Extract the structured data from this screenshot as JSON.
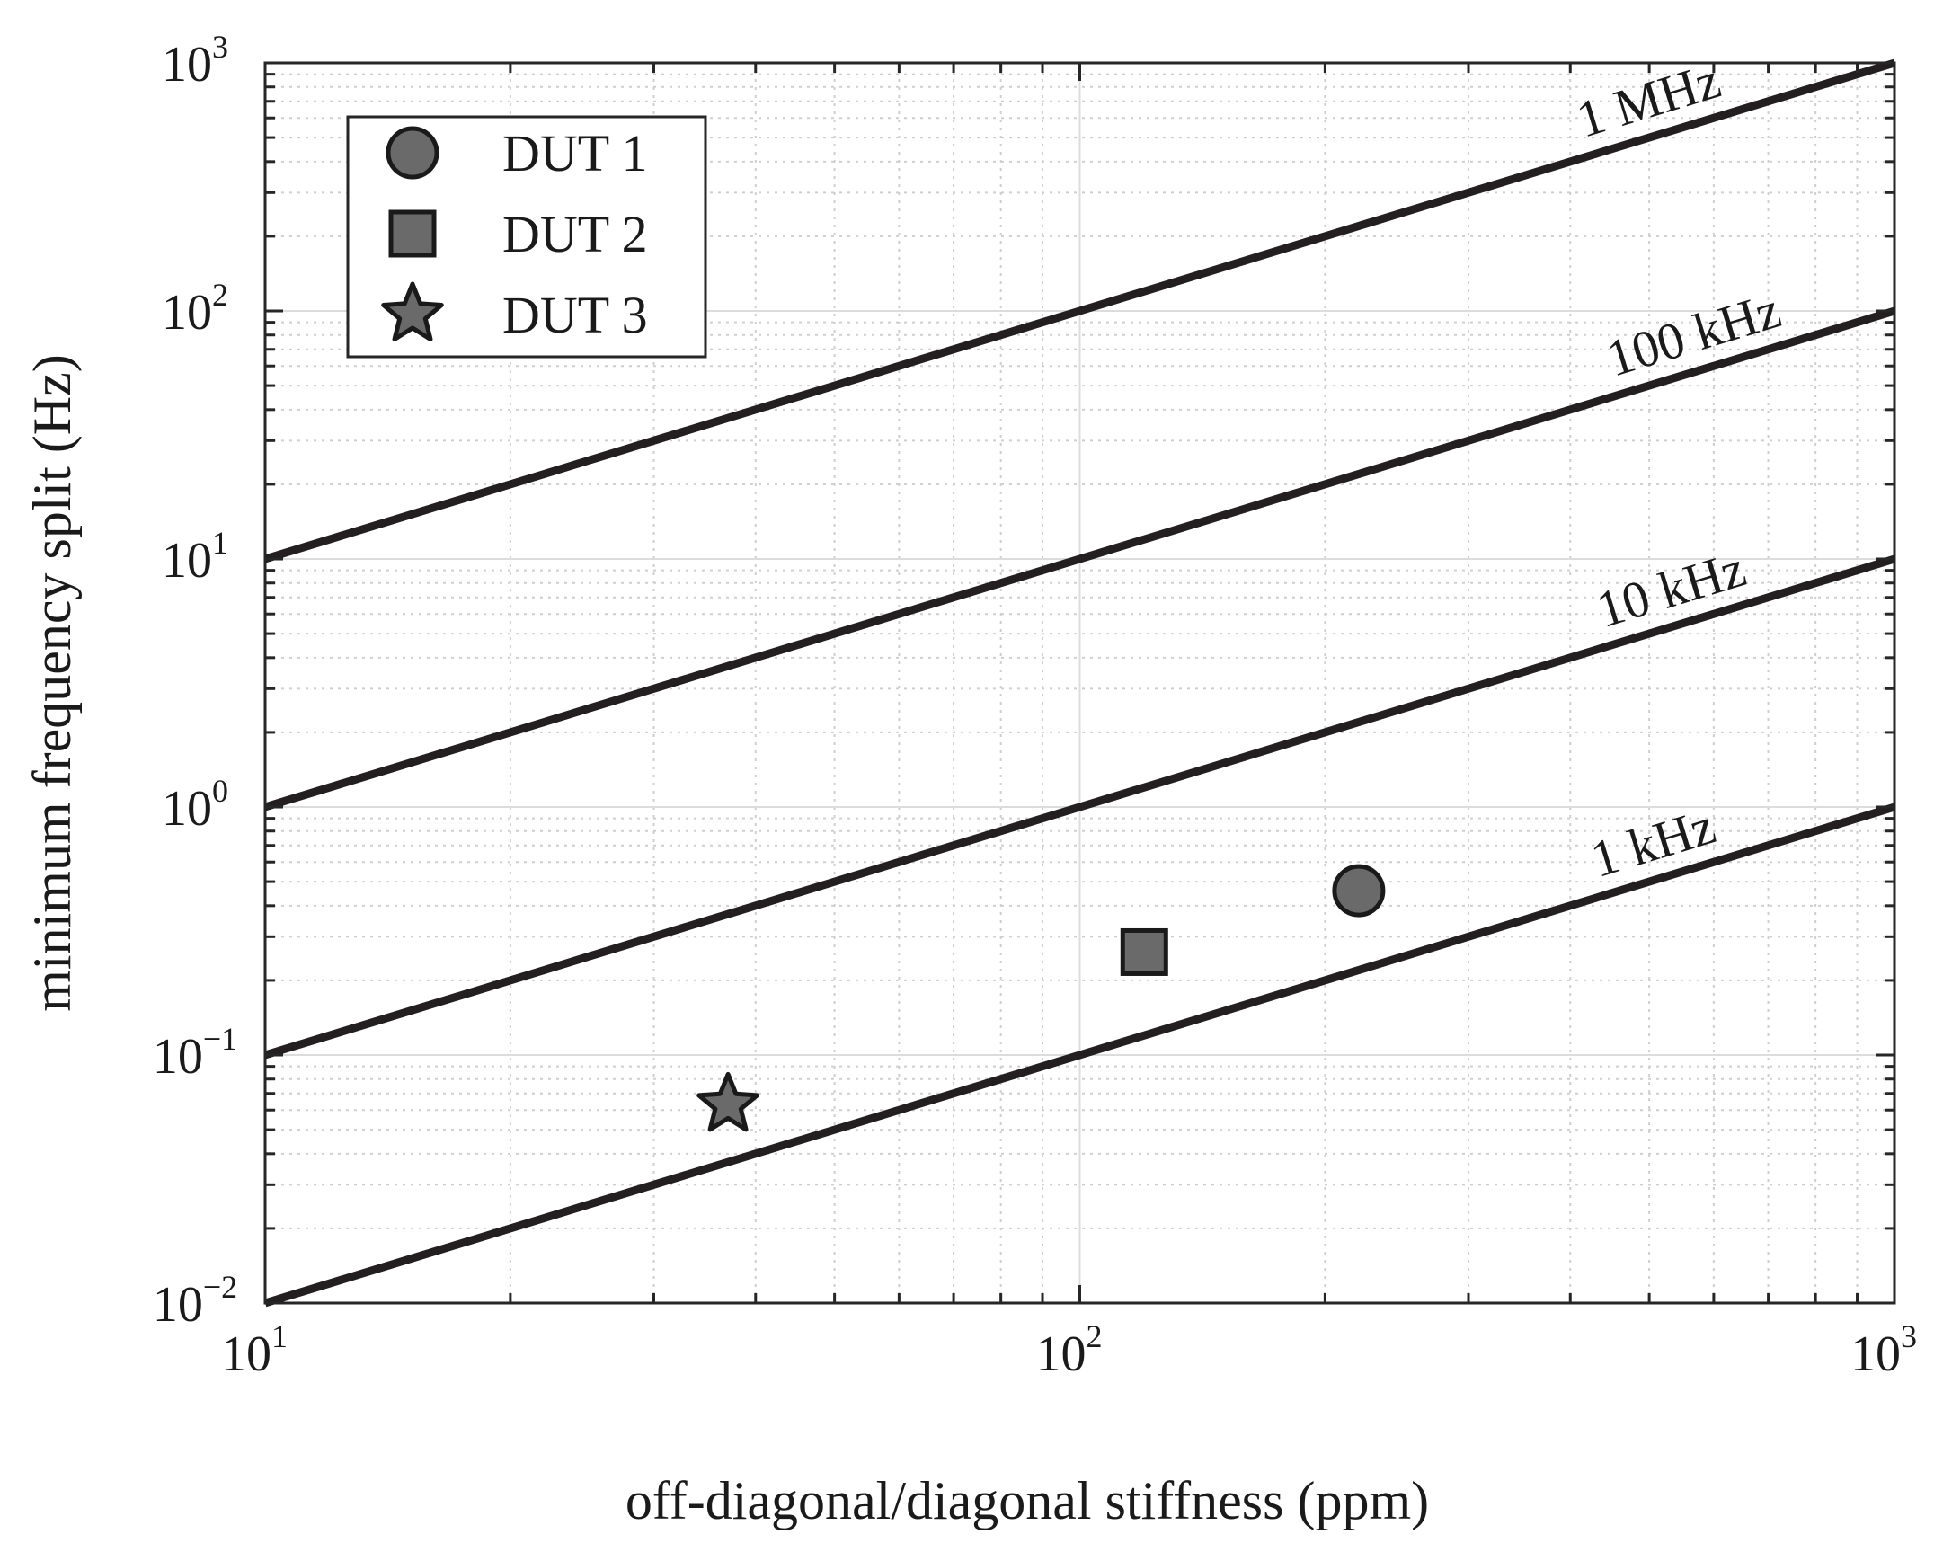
{
  "chart_data": {
    "type": "scatter",
    "title": "",
    "xlabel": "off-diagonal/diagonal stiffness (ppm)",
    "ylabel": "minimum frequency split (Hz)",
    "xscale": "log",
    "yscale": "log",
    "xlim": [
      10,
      1000
    ],
    "ylim": [
      0.01,
      1000
    ],
    "grid": true,
    "minor_grid": true,
    "x_ticks": [
      {
        "base": "10",
        "exp": "1"
      },
      {
        "base": "10",
        "exp": "2"
      },
      {
        "base": "10",
        "exp": "3"
      }
    ],
    "y_ticks": [
      {
        "base": "10",
        "exp": "−2"
      },
      {
        "base": "10",
        "exp": "−1"
      },
      {
        "base": "10",
        "exp": "0"
      },
      {
        "base": "10",
        "exp": "1"
      },
      {
        "base": "10",
        "exp": "2"
      },
      {
        "base": "10",
        "exp": "3"
      }
    ],
    "reference_lines": [
      {
        "label": "1 MHz",
        "x": [
          10,
          1000
        ],
        "y": [
          10,
          1000
        ]
      },
      {
        "label": "100 kHz",
        "x": [
          10,
          1000
        ],
        "y": [
          1,
          100
        ]
      },
      {
        "label": "10 kHz",
        "x": [
          10,
          1000
        ],
        "y": [
          0.1,
          10
        ]
      },
      {
        "label": "1 kHz",
        "x": [
          10,
          1000
        ],
        "y": [
          0.01,
          1
        ]
      }
    ],
    "series": [
      {
        "name": "DUT 1",
        "marker": "circle",
        "x": [
          220
        ],
        "y": [
          0.46
        ]
      },
      {
        "name": "DUT 2",
        "marker": "square",
        "x": [
          120
        ],
        "y": [
          0.26
        ]
      },
      {
        "name": "DUT 3",
        "marker": "star",
        "x": [
          37
        ],
        "y": [
          0.063
        ]
      }
    ],
    "legend_position": "top-left",
    "colors": {
      "line": "#231f20",
      "marker_fill": "#6a6a6a",
      "marker_edge": "#1a1a1a",
      "axis": "#262626",
      "grid": "#dcdcdc"
    }
  }
}
